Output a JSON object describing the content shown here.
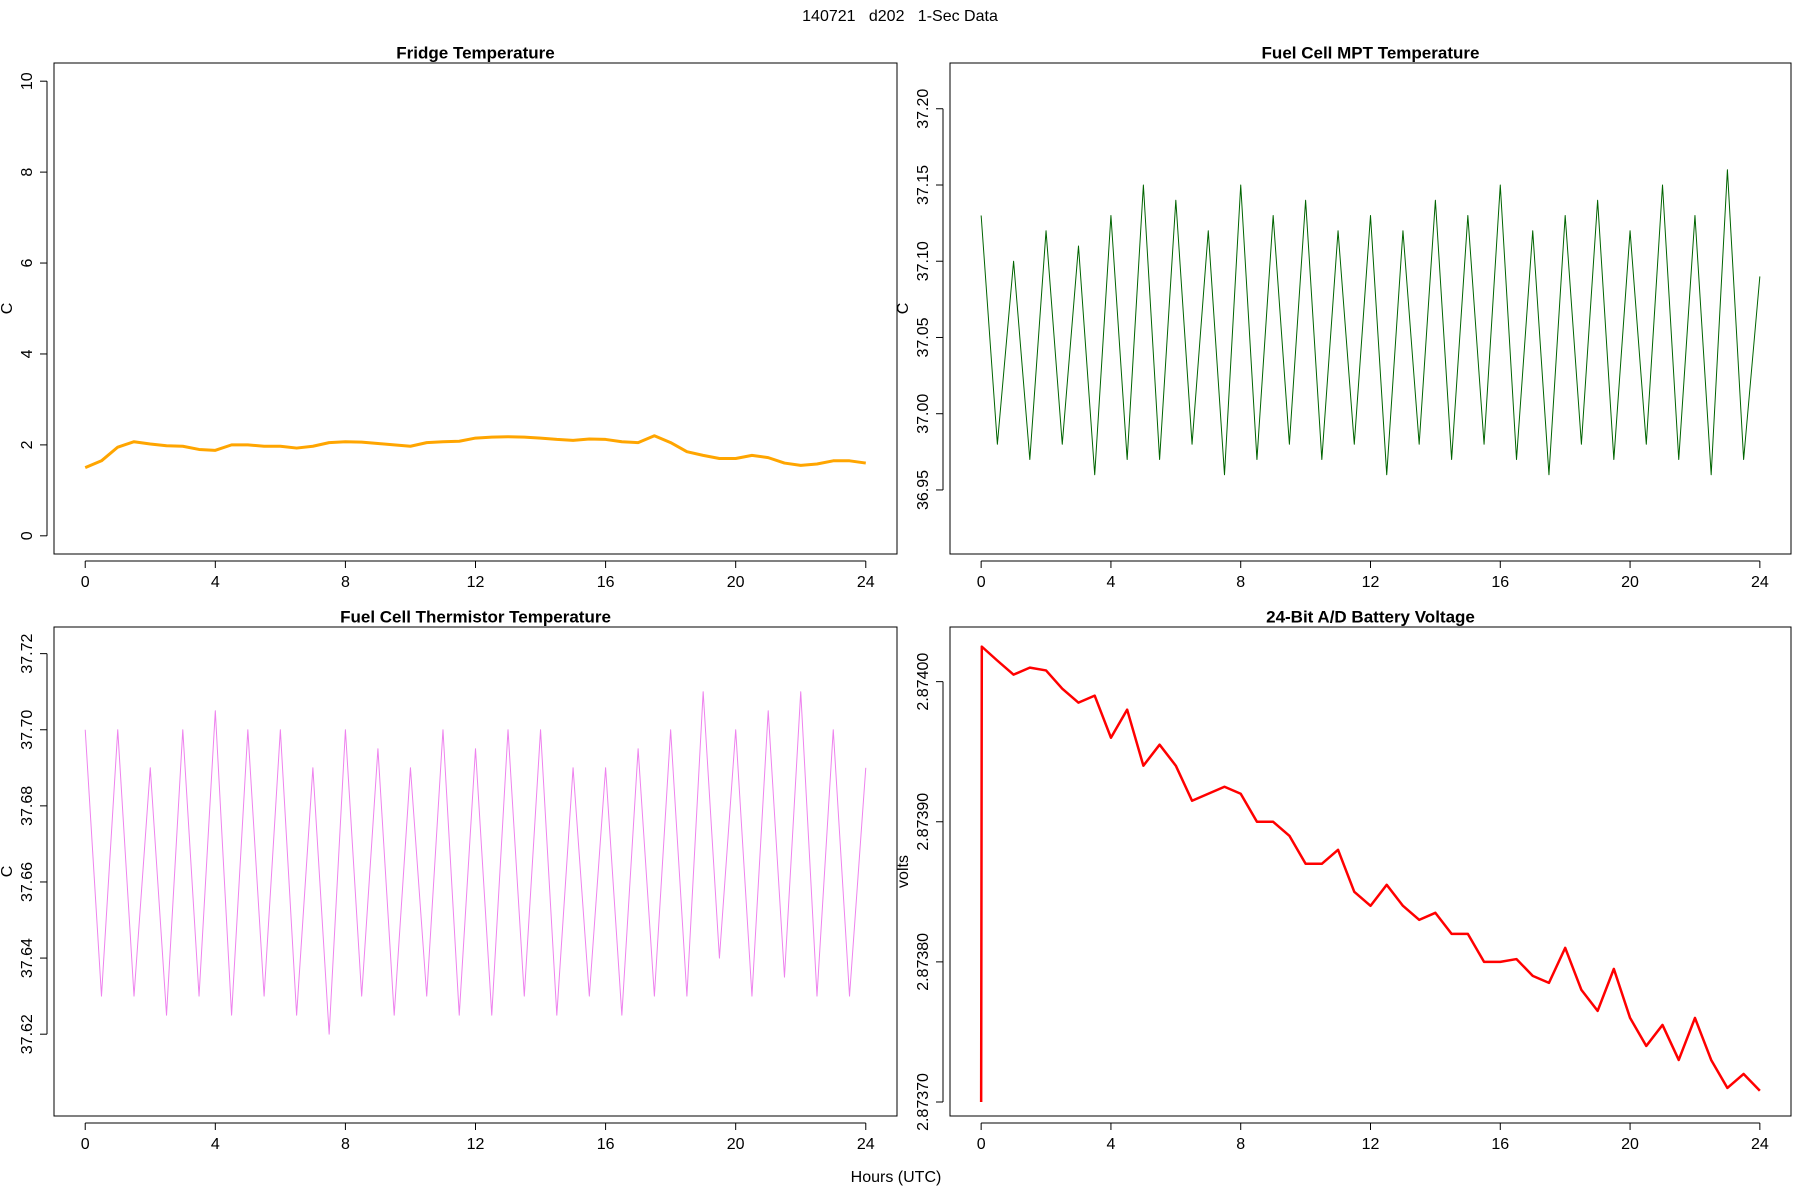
{
  "title": "140721   d202   1-Sec Data",
  "xlabel": "Hours (UTC)",
  "chart_data": [
    {
      "type": "line",
      "title": "Fridge Temperature",
      "ylabel": "C",
      "color": "#FFA500",
      "xlim": [
        -0.96,
        24.96
      ],
      "xticks": [
        0,
        4,
        8,
        12,
        16,
        20,
        24
      ],
      "ylim": [
        -0.4,
        10.4
      ],
      "yticks": [
        0,
        2,
        4,
        6,
        8,
        10
      ],
      "x": [
        0,
        0.5,
        1,
        1.5,
        2,
        2.5,
        3,
        3.5,
        4,
        4.5,
        5,
        5.5,
        6,
        6.5,
        7,
        7.5,
        8,
        8.5,
        9,
        9.5,
        10,
        10.5,
        11,
        11.5,
        12,
        12.5,
        13,
        13.5,
        14,
        14.5,
        15,
        15.5,
        16,
        16.5,
        17,
        17.5,
        18,
        18.5,
        19,
        19.5,
        20,
        20.5,
        21,
        21.5,
        22,
        22.5,
        23,
        23.5,
        24
      ],
      "values": [
        1.5,
        1.65,
        1.95,
        2.07,
        2.02,
        1.98,
        1.97,
        1.9,
        1.88,
        2.0,
        2.0,
        1.97,
        1.97,
        1.93,
        1.97,
        2.05,
        2.07,
        2.06,
        2.03,
        2.0,
        1.97,
        2.05,
        2.07,
        2.08,
        2.15,
        2.17,
        2.18,
        2.17,
        2.15,
        2.12,
        2.1,
        2.13,
        2.12,
        2.07,
        2.05,
        2.2,
        2.05,
        1.85,
        1.77,
        1.7,
        1.7,
        1.77,
        1.72,
        1.6,
        1.55,
        1.58,
        1.65,
        1.65,
        1.6
      ]
    },
    {
      "type": "line",
      "title": "Fuel Cell MPT Temperature",
      "ylabel": "C",
      "color": "#006400",
      "xlim": [
        -0.96,
        24.96
      ],
      "xticks": [
        0,
        4,
        8,
        12,
        16,
        20,
        24
      ],
      "ylim": [
        36.908,
        37.23
      ],
      "yticks": [
        36.95,
        {
          "value": 37,
          "label": "37.00"
        },
        37.05,
        {
          "value": 37.1,
          "label": "37.10"
        },
        37.15,
        {
          "value": 37.2,
          "label": "37.20"
        }
      ],
      "x": [
        0,
        0.5,
        1,
        1.5,
        2,
        2.5,
        3,
        3.5,
        4,
        4.5,
        5,
        5.5,
        6,
        6.5,
        7,
        7.5,
        8,
        8.5,
        9,
        9.5,
        10,
        10.5,
        11,
        11.5,
        12,
        12.5,
        13,
        13.5,
        14,
        14.5,
        15,
        15.5,
        16,
        16.5,
        17,
        17.5,
        18,
        18.5,
        19,
        19.5,
        20,
        20.5,
        21,
        21.5,
        22,
        22.5,
        23,
        23.5,
        24
      ],
      "values": [
        37.13,
        36.98,
        37.1,
        36.97,
        37.12,
        36.98,
        37.11,
        36.96,
        37.13,
        36.97,
        37.15,
        36.97,
        37.14,
        36.98,
        37.12,
        36.96,
        37.15,
        36.97,
        37.13,
        36.98,
        37.14,
        36.97,
        37.12,
        36.98,
        37.13,
        36.96,
        37.12,
        36.98,
        37.14,
        36.97,
        37.13,
        36.98,
        37.15,
        36.97,
        37.12,
        36.96,
        37.13,
        36.98,
        37.14,
        36.97,
        37.12,
        36.98,
        37.15,
        36.97,
        37.13,
        36.96,
        37.16,
        36.97,
        37.09
      ]
    },
    {
      "type": "line",
      "title": "Fuel Cell Thermistor Temperature",
      "ylabel": "C",
      "color": "#EE82EE",
      "xlim": [
        -0.96,
        24.96
      ],
      "xticks": [
        0,
        4,
        8,
        12,
        16,
        20,
        24
      ],
      "ylim": [
        37.5985,
        37.727
      ],
      "yticks": [
        37.62,
        37.64,
        37.66,
        37.68,
        {
          "value": 37.7,
          "label": "37.70"
        },
        37.72
      ],
      "x": [
        0,
        0.5,
        1,
        1.5,
        2,
        2.5,
        3,
        3.5,
        4,
        4.5,
        5,
        5.5,
        6,
        6.5,
        7,
        7.5,
        8,
        8.5,
        9,
        9.5,
        10,
        10.5,
        11,
        11.5,
        12,
        12.5,
        13,
        13.5,
        14,
        14.5,
        15,
        15.5,
        16,
        16.5,
        17,
        17.5,
        18,
        18.5,
        19,
        19.5,
        20,
        20.5,
        21,
        21.5,
        22,
        22.5,
        23,
        23.5,
        24
      ],
      "values": [
        37.7,
        37.63,
        37.7,
        37.63,
        37.69,
        37.625,
        37.7,
        37.63,
        37.705,
        37.625,
        37.7,
        37.63,
        37.7,
        37.625,
        37.69,
        37.62,
        37.7,
        37.63,
        37.695,
        37.625,
        37.69,
        37.63,
        37.7,
        37.625,
        37.695,
        37.625,
        37.7,
        37.63,
        37.7,
        37.625,
        37.69,
        37.63,
        37.69,
        37.625,
        37.695,
        37.63,
        37.7,
        37.63,
        37.71,
        37.64,
        37.7,
        37.63,
        37.705,
        37.635,
        37.71,
        37.63,
        37.7,
        37.63,
        37.69
      ]
    },
    {
      "type": "line",
      "title": "24-Bit A/D Battery Voltage",
      "ylabel": "volts",
      "color": "#FF0000",
      "xlim": [
        -0.96,
        24.96
      ],
      "xticks": [
        0,
        4,
        8,
        12,
        16,
        20,
        24
      ],
      "ylim": [
        2.87369,
        2.874039
      ],
      "yticks": [
        {
          "value": 2.8737,
          "label": "2.87370"
        },
        {
          "value": 2.8738,
          "label": "2.87380"
        },
        {
          "value": 2.8739,
          "label": "2.87390"
        },
        {
          "value": 2.874,
          "label": "2.87400"
        }
      ],
      "x": [
        0,
        0.02,
        0.5,
        1,
        1.5,
        2,
        2.5,
        3,
        3.5,
        4,
        4.5,
        5,
        5.5,
        6,
        6.5,
        7,
        7.5,
        8,
        8.5,
        9,
        9.5,
        10,
        10.5,
        11,
        11.5,
        12,
        12.5,
        13,
        13.5,
        14,
        14.5,
        15,
        15.5,
        16,
        16.5,
        17,
        17.5,
        18,
        18.5,
        19,
        19.5,
        20,
        20.5,
        21,
        21.5,
        22,
        22.5,
        23,
        23.5,
        24
      ],
      "values": [
        2.8737,
        2.874025,
        2.874015,
        2.874005,
        2.87401,
        2.874008,
        2.873995,
        2.873985,
        2.87399,
        2.87396,
        2.87398,
        2.87394,
        2.873955,
        2.87394,
        2.873915,
        2.87392,
        2.873925,
        2.87392,
        2.8739,
        2.8739,
        2.87389,
        2.87387,
        2.87387,
        2.87388,
        2.87385,
        2.87384,
        2.873855,
        2.87384,
        2.87383,
        2.873835,
        2.87382,
        2.87382,
        2.8738,
        2.8738,
        2.873802,
        2.87379,
        2.873785,
        2.87381,
        2.87378,
        2.873765,
        2.873795,
        2.87376,
        2.87374,
        2.873755,
        2.87373,
        2.87376,
        2.87373,
        2.87371,
        2.87372,
        2.873708
      ]
    }
  ]
}
